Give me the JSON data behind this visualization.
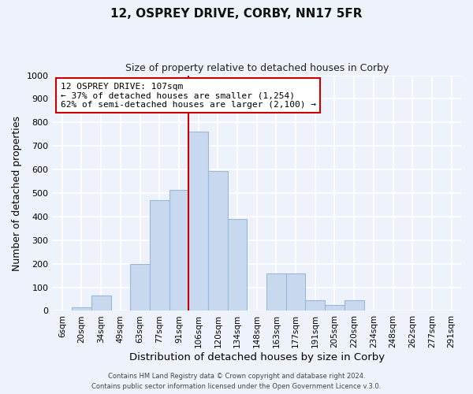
{
  "title": "12, OSPREY DRIVE, CORBY, NN17 5FR",
  "subtitle": "Size of property relative to detached houses in Corby",
  "xlabel": "Distribution of detached houses by size in Corby",
  "ylabel": "Number of detached properties",
  "bin_labels": [
    "6sqm",
    "20sqm",
    "34sqm",
    "49sqm",
    "63sqm",
    "77sqm",
    "91sqm",
    "106sqm",
    "120sqm",
    "134sqm",
    "148sqm",
    "163sqm",
    "177sqm",
    "191sqm",
    "205sqm",
    "220sqm",
    "234sqm",
    "248sqm",
    "262sqm",
    "277sqm",
    "291sqm"
  ],
  "bar_heights": [
    0,
    15,
    65,
    0,
    200,
    470,
    515,
    760,
    595,
    390,
    0,
    160,
    160,
    45,
    25,
    45,
    0,
    0,
    0,
    0,
    0
  ],
  "bar_color": "#c8d8ee",
  "bar_edge_color": "#9ab8d8",
  "vline_color": "#cc0000",
  "annotation_text": "12 OSPREY DRIVE: 107sqm\n← 37% of detached houses are smaller (1,254)\n62% of semi-detached houses are larger (2,100) →",
  "annotation_box_color": "#ffffff",
  "annotation_box_edge": "#cc0000",
  "ylim": [
    0,
    1000
  ],
  "yticks": [
    0,
    100,
    200,
    300,
    400,
    500,
    600,
    700,
    800,
    900,
    1000
  ],
  "footer1": "Contains HM Land Registry data © Crown copyright and database right 2024.",
  "footer2": "Contains public sector information licensed under the Open Government Licence v.3.0.",
  "bg_color": "#eef2fa",
  "grid_color": "#ffffff",
  "title_fontsize": 11,
  "subtitle_fontsize": 9
}
